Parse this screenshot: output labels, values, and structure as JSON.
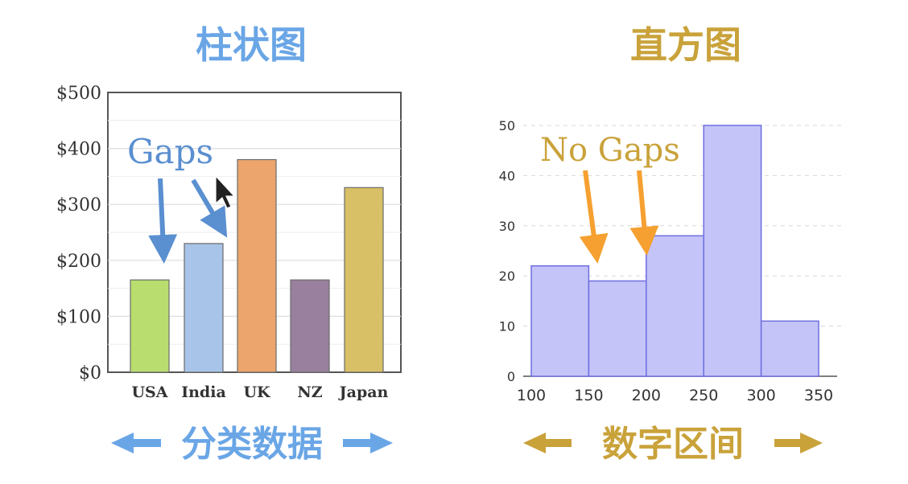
{
  "colors": {
    "left_title": "#6aa6e6",
    "right_title": "#c9a23a",
    "left_annotation": "#5a8fd0",
    "right_annotation": "#c9a23a",
    "orange_arrow": "#f5a030",
    "hist_fill": "#c4c4f8",
    "hist_stroke": "#6e6ee0"
  },
  "titles": {
    "left": "柱状图",
    "right": "直方图"
  },
  "annotations": {
    "gaps": "Gaps",
    "no_gaps": "No Gaps"
  },
  "footers": {
    "left": "分类数据",
    "right": "数字区间"
  },
  "chart_data": [
    {
      "type": "bar",
      "title": "柱状图",
      "categories": [
        "USA",
        "India",
        "UK",
        "NZ",
        "Japan"
      ],
      "values": [
        165,
        230,
        380,
        165,
        330
      ],
      "colors": [
        "#b9dd6e",
        "#a8c4e8",
        "#eca56c",
        "#98809e",
        "#d8c066"
      ],
      "ylim": [
        0,
        500
      ],
      "yticks": [
        0,
        100,
        200,
        300,
        400,
        500
      ],
      "ytick_labels": [
        "$0",
        "$100",
        "$200",
        "$300",
        "$400",
        "$500"
      ],
      "grid": true,
      "xlabel": "分类数据",
      "ylabel": ""
    },
    {
      "type": "bar",
      "title": "直方图",
      "bins": [
        [
          100,
          150
        ],
        [
          150,
          200
        ],
        [
          200,
          250
        ],
        [
          250,
          300
        ],
        [
          300,
          350
        ]
      ],
      "values": [
        22,
        19,
        28,
        50,
        11
      ],
      "xlim": [
        100,
        350
      ],
      "xticks": [
        100,
        150,
        200,
        250,
        300,
        350
      ],
      "ylim": [
        0,
        50
      ],
      "yticks": [
        0,
        10,
        20,
        30,
        40,
        50
      ],
      "grid": true,
      "xlabel": "数字区间",
      "ylabel": ""
    }
  ]
}
